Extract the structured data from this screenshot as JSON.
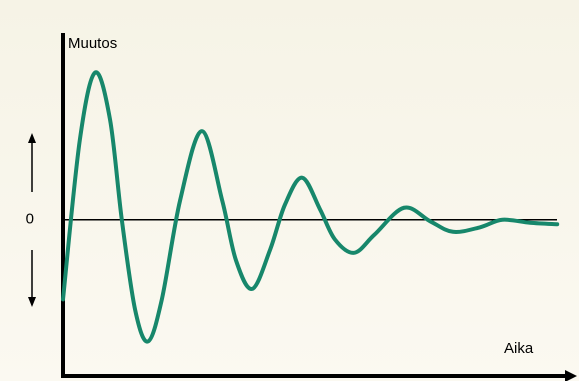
{
  "chart_data": {
    "type": "line",
    "ylabel": "Muutos",
    "xlabel": "Aika",
    "x": [
      0,
      0.34,
      0.65,
      0.95,
      1.19,
      1.46,
      1.72,
      2.0,
      2.37,
      2.81,
      3.22,
      3.5,
      3.83,
      4.19,
      4.49,
      4.84,
      5.2,
      5.5,
      5.89,
      6.3,
      6.9,
      7.43,
      7.89,
      8.44,
      8.89,
      9.45,
      10.0
    ],
    "values": [
      -0.53,
      0.53,
      0.98,
      0.67,
      0,
      -0.6,
      -0.81,
      -0.53,
      0.13,
      0.59,
      0.13,
      -0.27,
      -0.46,
      -0.2,
      0.1,
      0.28,
      0.07,
      -0.13,
      -0.22,
      -0.1,
      0.08,
      -0.01,
      -0.08,
      -0.05,
      0,
      -0.02,
      -0.03
    ],
    "color": "#17876b",
    "xlim": [
      0,
      10.36
    ],
    "ylim": [
      -1.04,
      1.23
    ],
    "yticks": [
      0
    ],
    "grid": true
  }
}
